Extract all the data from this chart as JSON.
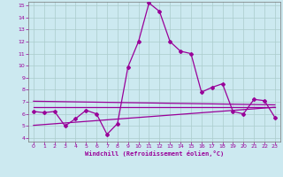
{
  "x": [
    0,
    1,
    2,
    3,
    4,
    5,
    6,
    7,
    8,
    9,
    10,
    11,
    12,
    13,
    14,
    15,
    16,
    17,
    18,
    19,
    20,
    21,
    22,
    23
  ],
  "line1": [
    6.2,
    6.1,
    6.2,
    5.0,
    5.6,
    6.3,
    6.0,
    4.3,
    5.2,
    9.9,
    12.0,
    15.2,
    14.5,
    12.0,
    11.2,
    11.0,
    7.8,
    8.2,
    8.5,
    6.2,
    6.0,
    7.2,
    7.1,
    5.7
  ],
  "trend1_x": [
    0,
    23
  ],
  "trend1_y": [
    7.05,
    6.75
  ],
  "trend2_x": [
    0,
    23
  ],
  "trend2_y": [
    6.55,
    6.55
  ],
  "trend3_x": [
    0,
    23
  ],
  "trend3_y": [
    5.05,
    6.55
  ],
  "bg_color": "#cce9f0",
  "line_color": "#990099",
  "grid_color": "#aacccc",
  "xlabel": "Windchill (Refroidissement éolien,°C)",
  "ylim": [
    4,
    15
  ],
  "xlim": [
    0,
    23
  ],
  "yticks": [
    4,
    5,
    6,
    7,
    8,
    9,
    10,
    11,
    12,
    13,
    14,
    15
  ],
  "xticks": [
    0,
    1,
    2,
    3,
    4,
    5,
    6,
    7,
    8,
    9,
    10,
    11,
    12,
    13,
    14,
    15,
    16,
    17,
    18,
    19,
    20,
    21,
    22,
    23
  ]
}
